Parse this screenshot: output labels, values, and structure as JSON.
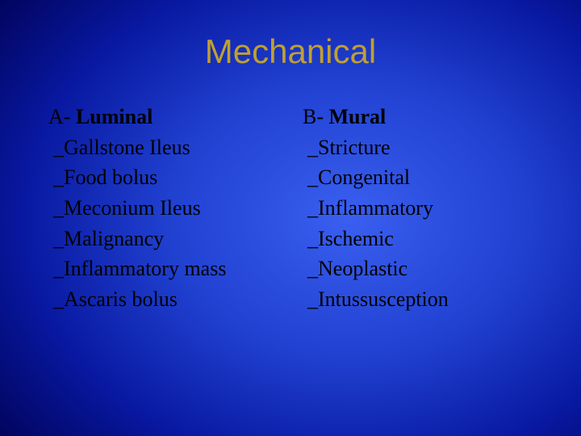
{
  "slide": {
    "title": "Mechanical",
    "title_color": "#c0a030",
    "title_fontsize": 42,
    "body_color": "#000000",
    "body_fontsize": 26,
    "background": {
      "type": "radial-gradient",
      "center_color": "#3a5ff0",
      "outer_color": "#000000"
    },
    "columns": [
      {
        "header_letter": "A-",
        "header_word": "Luminal",
        "items": [
          "_Gallstone Ileus",
          "_Food bolus",
          "_Meconium Ileus",
          "_Malignancy",
          "_Inflammatory mass",
          "_Ascaris bolus"
        ]
      },
      {
        "header_letter": "B-",
        "header_word": "Mural",
        "items": [
          "_Stricture",
          "_Congenital",
          "_Inflammatory",
          "_Ischemic",
          "_Neoplastic",
          "_Intussusception"
        ]
      }
    ]
  }
}
